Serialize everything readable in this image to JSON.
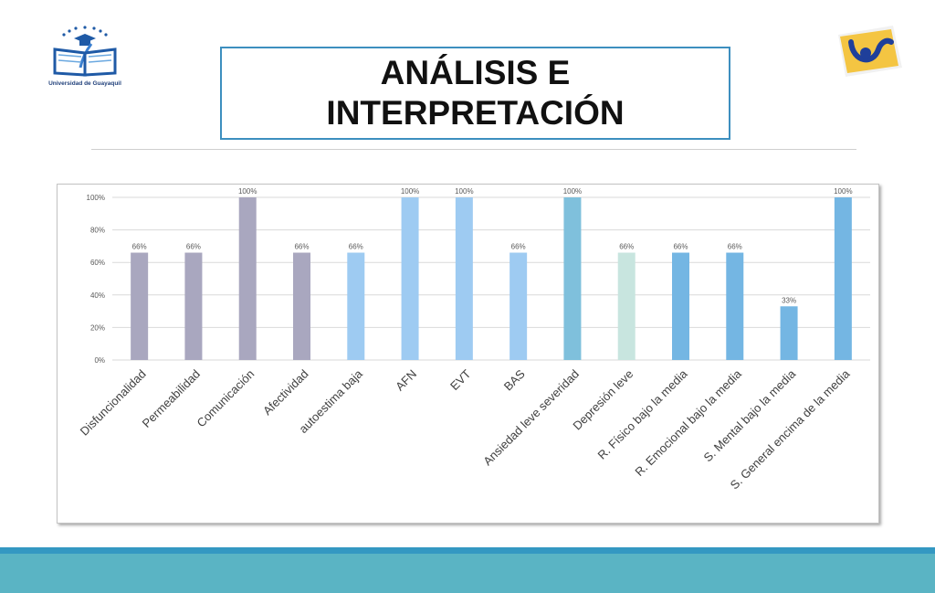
{
  "header": {
    "title_line1": "ANÁLISIS E",
    "title_line2": "INTERPRETACIÓN",
    "logo_left_caption": "Universidad de Guayaquil"
  },
  "colors": {
    "title_border": "#3d8fbf",
    "band_dark": "#3498c2",
    "band_light": "#5ab4c4"
  },
  "chart_data": {
    "type": "bar",
    "categories": [
      "Disfuncionalidad",
      "Permeabilidad",
      "Comunicación",
      "Afectividad",
      "autoestima baja",
      "AFN",
      "EVT",
      "BAS",
      "Ansiedad leve severidad",
      "Depresión leve",
      "R. Físico bajo la media",
      "R. Emocional bajo la media",
      "S. Mental bajo la media",
      "S. General encima de la media"
    ],
    "values": [
      66,
      66,
      100,
      66,
      66,
      100,
      100,
      66,
      100,
      66,
      66,
      66,
      33,
      100
    ],
    "value_labels": [
      "66%",
      "66%",
      "100%",
      "66%",
      "66%",
      "100%",
      "100%",
      "66%",
      "100%",
      "66%",
      "66%",
      "66%",
      "33%",
      "100%"
    ],
    "bar_colors": [
      "#a9a7bf",
      "#a9a7bf",
      "#a9a7bf",
      "#a9a7bf",
      "#9ecbf2",
      "#9ecbf2",
      "#9ecbf2",
      "#9ecbf2",
      "#7fc0dc",
      "#c8e5df",
      "#74b6e3",
      "#74b6e3",
      "#74b6e3",
      "#74b6e3"
    ],
    "ylim": [
      0,
      100
    ],
    "yticks": [
      "0%",
      "20%",
      "40%",
      "60%",
      "80%",
      "100%"
    ],
    "ytick_values": [
      0,
      20,
      40,
      60,
      80,
      100
    ],
    "grid": true,
    "title": "",
    "xlabel": "",
    "ylabel": ""
  }
}
